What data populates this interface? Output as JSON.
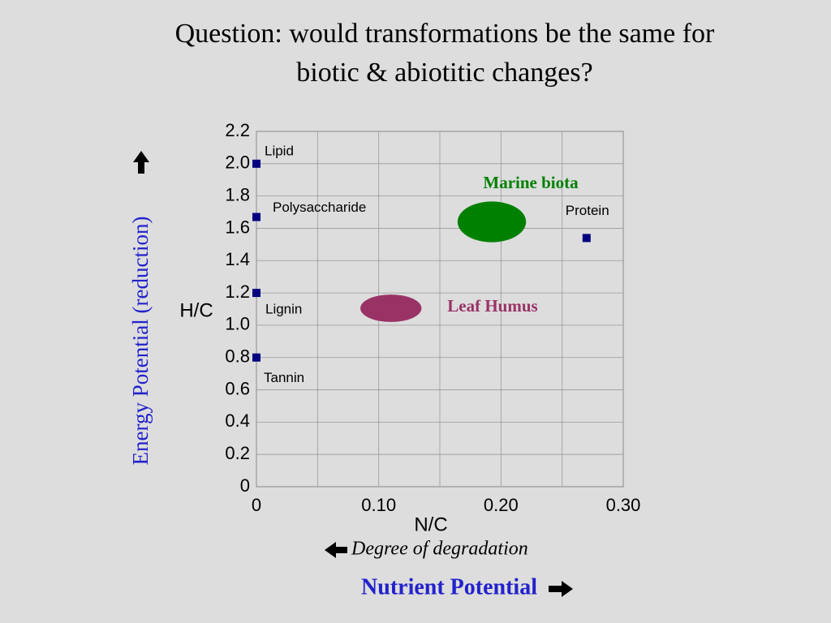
{
  "chart_data": {
    "type": "scatter",
    "title": [
      "Question: would transformations be the same for",
      "biotic & abiotitic changes?"
    ],
    "x_label": "N/C",
    "y_label": "H/C",
    "y_concept": "Energy Potential (reduction)",
    "x_concept": "Nutrient Potential",
    "x_note": "Degree of degradation",
    "xlim": [
      0,
      0.3
    ],
    "ylim": [
      0,
      2.2
    ],
    "xticks": [
      0,
      {
        "value": 0.1,
        "label": "0.10"
      },
      {
        "value": 0.2,
        "label": "0.20"
      },
      {
        "value": 0.3,
        "label": "0.30"
      }
    ],
    "xminorticks": [
      0.05,
      0.15,
      0.25
    ],
    "yticks": [
      0,
      0.2,
      0.4,
      0.6,
      0.8,
      {
        "value": 1,
        "label": "1.0"
      },
      1.2,
      1.4,
      1.6,
      1.8,
      {
        "value": 2,
        "label": "2.0"
      },
      2.2
    ],
    "grid": true,
    "series": [
      {
        "color": "#000080",
        "names": [
          "Lipid",
          "Polysaccharide",
          "Lignin",
          "Tannin",
          "Protein"
        ],
        "x": [
          0,
          0,
          0,
          0,
          0.27
        ],
        "y": [
          2.0,
          1.67,
          1.2,
          0.8,
          1.54
        ]
      }
    ],
    "regions": [
      {
        "name": "Marine biota",
        "color": "#008000",
        "x": 0.1925,
        "y": 1.64,
        "rx": 0.028,
        "ry": 0.126
      },
      {
        "name": "Leaf Humus",
        "color": "#993366",
        "x": 0.11,
        "y": 1.105,
        "rx": 0.025,
        "ry": 0.085
      }
    ]
  }
}
